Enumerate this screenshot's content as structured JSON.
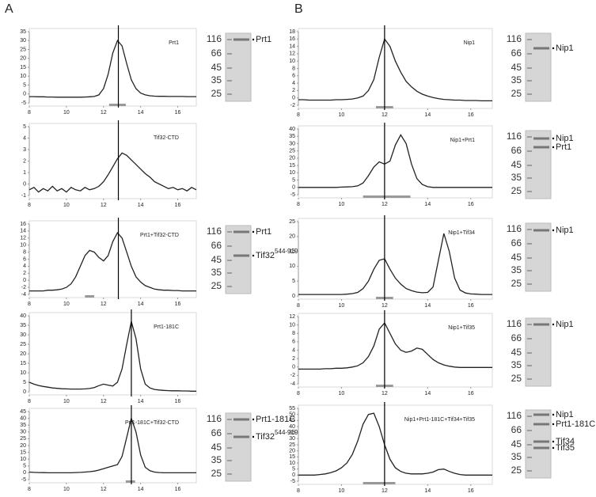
{
  "panel_labels": [
    "A",
    "B"
  ],
  "chart_data": [
    {
      "type": "line",
      "title": "Prt1",
      "x": [
        8,
        8.25,
        8.5,
        8.75,
        9,
        9.25,
        9.5,
        9.75,
        10,
        10.25,
        10.5,
        10.75,
        11,
        11.25,
        11.5,
        11.75,
        12,
        12.25,
        12.5,
        12.75,
        13,
        13.25,
        13.5,
        13.75,
        14,
        14.25,
        14.5,
        14.75,
        15,
        15.25,
        15.5,
        15.75,
        16,
        16.25,
        16.5,
        16.75,
        17
      ],
      "values": [
        -1.5,
        -1.5,
        -1.6,
        -1.6,
        -1.7,
        -1.7,
        -1.8,
        -1.8,
        -1.8,
        -1.8,
        -1.8,
        -1.8,
        -1.7,
        -1.6,
        -1.4,
        -0.5,
        3,
        11,
        23,
        30,
        27,
        17,
        8,
        3,
        0.5,
        -0.5,
        -1,
        -1.2,
        -1.3,
        -1.3,
        -1.4,
        -1.4,
        -1.4,
        -1.4,
        -1.5,
        -1.5,
        -1.5
      ],
      "xlim": [
        8,
        17
      ],
      "xticks": [
        8,
        10,
        12,
        14,
        16
      ],
      "ylim": [
        -5,
        35
      ],
      "yticks": [
        -5,
        0,
        5,
        10,
        15,
        20,
        25,
        30,
        35
      ],
      "color": "#222222",
      "vline": 12.8,
      "fraction_bar": [
        12.3,
        13.2
      ],
      "gel": {
        "markers": [
          116,
          66,
          45,
          35,
          25
        ],
        "bands": [
          {
            "text": "Prt1"
          }
        ]
      }
    },
    {
      "type": "line",
      "title": "Tif32-CTD",
      "x": [
        8,
        8.25,
        8.5,
        8.75,
        9,
        9.25,
        9.5,
        9.75,
        10,
        10.25,
        10.5,
        10.75,
        11,
        11.25,
        11.5,
        11.75,
        12,
        12.25,
        12.5,
        12.75,
        13,
        13.25,
        13.5,
        13.75,
        14,
        14.25,
        14.5,
        14.75,
        15,
        15.25,
        15.5,
        15.75,
        16,
        16.25,
        16.5,
        16.75,
        17
      ],
      "values": [
        -0.5,
        -0.3,
        -0.7,
        -0.4,
        -0.6,
        -0.2,
        -0.6,
        -0.4,
        -0.7,
        -0.3,
        -0.5,
        -0.6,
        -0.3,
        -0.5,
        -0.4,
        -0.2,
        0.2,
        0.8,
        1.5,
        2.2,
        2.7,
        2.5,
        2.1,
        1.7,
        1.3,
        0.9,
        0.6,
        0.2,
        0,
        -0.2,
        -0.4,
        -0.3,
        -0.5,
        -0.4,
        -0.6,
        -0.3,
        -0.5
      ],
      "xlim": [
        8,
        17
      ],
      "xticks": [
        8,
        10,
        12,
        14,
        16
      ],
      "ylim": [
        -1,
        5
      ],
      "yticks": [
        -1,
        0,
        1,
        2,
        3,
        4,
        5
      ],
      "color": "#222222",
      "vline": 12.8
    },
    {
      "type": "line",
      "title": "Prt1+Tif32-CTD",
      "x": [
        8,
        8.25,
        8.5,
        8.75,
        9,
        9.25,
        9.5,
        9.75,
        10,
        10.25,
        10.5,
        10.75,
        11,
        11.25,
        11.5,
        11.75,
        12,
        12.25,
        12.5,
        12.75,
        13,
        13.25,
        13.5,
        13.75,
        14,
        14.25,
        14.5,
        14.75,
        15,
        15.25,
        15.5,
        15.75,
        16,
        16.25,
        16.5,
        16.75,
        17
      ],
      "values": [
        -3,
        -3,
        -3,
        -3,
        -2.8,
        -2.8,
        -2.7,
        -2.5,
        -2,
        -1,
        1,
        4,
        7,
        8.5,
        8,
        6.5,
        5.5,
        7,
        11,
        13.5,
        12,
        8,
        4,
        1,
        -0.5,
        -1.5,
        -2,
        -2.5,
        -2.7,
        -2.8,
        -2.8,
        -2.9,
        -2.9,
        -3,
        -3,
        -3,
        -3
      ],
      "xlim": [
        8,
        17
      ],
      "xticks": [
        8,
        10,
        12,
        14,
        16
      ],
      "ylim": [
        -4,
        16
      ],
      "yticks": [
        -4,
        -2,
        0,
        2,
        4,
        6,
        8,
        10,
        12,
        14,
        16
      ],
      "color": "#222222",
      "vline": 12.8,
      "fraction_bar": [
        11,
        11.5
      ],
      "gel": {
        "markers": [
          116,
          66,
          45,
          35,
          25
        ],
        "bands": [
          {
            "text": "Prt1"
          },
          {
            "text": "Tif32",
            "sup": "544-919"
          }
        ]
      }
    },
    {
      "type": "line",
      "title": "Prt1-181C",
      "x": [
        8,
        8.25,
        8.5,
        8.75,
        9,
        9.25,
        9.5,
        9.75,
        10,
        10.25,
        10.5,
        10.75,
        11,
        11.25,
        11.5,
        11.75,
        12,
        12.25,
        12.5,
        12.75,
        13,
        13.25,
        13.5,
        13.75,
        14,
        14.25,
        14.5,
        14.75,
        15,
        15.25,
        15.5,
        15.75,
        16,
        16.25,
        16.5,
        16.75,
        17
      ],
      "values": [
        5,
        4,
        3.3,
        2.8,
        2.4,
        2,
        1.8,
        1.6,
        1.5,
        1.4,
        1.4,
        1.4,
        1.5,
        1.7,
        2.2,
        3.2,
        4,
        3.5,
        3,
        5,
        12,
        25,
        37,
        28,
        12,
        4,
        2,
        1.2,
        0.9,
        0.7,
        0.6,
        0.5,
        0.5,
        0.4,
        0.4,
        0.3,
        0.3
      ],
      "xlim": [
        8,
        17
      ],
      "xticks": [
        8,
        10,
        12,
        14,
        16
      ],
      "ylim": [
        0,
        40
      ],
      "yticks": [
        0,
        5,
        10,
        15,
        20,
        25,
        30,
        35,
        40
      ],
      "color": "#222222",
      "vline": 13.5
    },
    {
      "type": "line",
      "title": "Prt1-181C+Tif32-CTD",
      "x": [
        8,
        8.25,
        8.5,
        8.75,
        9,
        9.25,
        9.5,
        9.75,
        10,
        10.25,
        10.5,
        10.75,
        11,
        11.25,
        11.5,
        11.75,
        12,
        12.25,
        12.5,
        12.75,
        13,
        13.25,
        13.5,
        13.75,
        14,
        14.25,
        14.5,
        14.75,
        15,
        15.25,
        15.5,
        15.75,
        16,
        16.25,
        16.5,
        16.75,
        17
      ],
      "values": [
        0.5,
        0.3,
        0.2,
        0.1,
        0,
        0,
        0,
        0,
        0,
        0,
        0.2,
        0.3,
        0.5,
        0.8,
        1.2,
        2,
        3,
        4,
        5,
        6,
        12,
        26,
        40,
        30,
        13,
        4,
        1.5,
        0.5,
        0.2,
        0,
        0,
        0,
        0,
        0,
        0,
        0,
        0
      ],
      "xlim": [
        8,
        17
      ],
      "xticks": [
        8,
        10,
        12,
        14,
        16
      ],
      "ylim": [
        -5,
        45
      ],
      "yticks": [
        -5,
        0,
        5,
        10,
        15,
        20,
        25,
        30,
        35,
        40,
        45
      ],
      "color": "#222222",
      "vline": 13.5,
      "fraction_bar": [
        13.2,
        13.7
      ],
      "gel": {
        "markers": [
          116,
          66,
          45,
          35,
          25
        ],
        "bands": [
          {
            "text": "Prt1-181C"
          },
          {
            "text": "Tif32",
            "sup": "544-919"
          }
        ]
      }
    },
    {
      "type": "line",
      "title": "Nip1",
      "x": [
        8,
        8.25,
        8.5,
        8.75,
        9,
        9.25,
        9.5,
        9.75,
        10,
        10.25,
        10.5,
        10.75,
        11,
        11.25,
        11.5,
        11.75,
        12,
        12.25,
        12.5,
        12.75,
        13,
        13.25,
        13.5,
        13.75,
        14,
        14.25,
        14.5,
        14.75,
        15,
        15.25,
        15.5,
        15.75,
        16,
        16.25,
        16.5,
        16.75,
        17
      ],
      "values": [
        -0.5,
        -0.5,
        -0.6,
        -0.6,
        -0.6,
        -0.6,
        -0.6,
        -0.5,
        -0.5,
        -0.4,
        -0.3,
        0,
        0.5,
        2,
        5,
        11,
        16,
        14,
        10,
        7,
        4.5,
        3,
        1.8,
        1,
        0.5,
        0.1,
        -0.2,
        -0.4,
        -0.5,
        -0.6,
        -0.6,
        -0.7,
        -0.7,
        -0.7,
        -0.8,
        -0.8,
        -0.8
      ],
      "xlim": [
        8,
        17
      ],
      "xticks": [
        8,
        10,
        12,
        14,
        16
      ],
      "ylim": [
        -2,
        18
      ],
      "yticks": [
        -2,
        0,
        2,
        4,
        6,
        8,
        10,
        12,
        14,
        16,
        18
      ],
      "color": "#222222",
      "vline": 12,
      "fraction_bar": [
        11.6,
        12.4
      ],
      "gel": {
        "markers": [
          116,
          66,
          45,
          35,
          25
        ],
        "bands": [
          {
            "text": "Nip1"
          }
        ]
      }
    },
    {
      "type": "line",
      "title": "Nip1+Prt1",
      "x": [
        8,
        8.25,
        8.5,
        8.75,
        9,
        9.25,
        9.5,
        9.75,
        10,
        10.25,
        10.5,
        10.75,
        11,
        11.25,
        11.5,
        11.75,
        12,
        12.25,
        12.5,
        12.75,
        13,
        13.25,
        13.5,
        13.75,
        14,
        14.25,
        14.5,
        14.75,
        15,
        15.25,
        15.5,
        15.75,
        16,
        16.25,
        16.5,
        16.75,
        17
      ],
      "values": [
        0,
        0,
        0,
        0,
        0,
        0,
        0,
        0,
        0.2,
        0.3,
        0.5,
        1,
        3,
        8,
        14,
        17.5,
        16,
        18,
        29,
        36,
        30,
        16,
        6,
        2,
        0.5,
        0,
        0,
        0,
        0,
        0,
        0,
        0,
        0,
        0,
        0,
        0,
        0
      ],
      "xlim": [
        8,
        17
      ],
      "xticks": [
        8,
        10,
        12,
        14,
        16
      ],
      "ylim": [
        -5,
        40
      ],
      "yticks": [
        -5,
        0,
        5,
        10,
        15,
        20,
        25,
        30,
        35,
        40
      ],
      "color": "#222222",
      "vline": 12,
      "fraction_bar": [
        11,
        13.2
      ],
      "gel": {
        "markers": [
          116,
          66,
          45,
          35,
          25
        ],
        "bands": [
          {
            "text": "Nip1"
          },
          {
            "text": "Prt1"
          }
        ]
      }
    },
    {
      "type": "line",
      "title": "Nip1+Tif34",
      "x": [
        8,
        8.25,
        8.5,
        8.75,
        9,
        9.25,
        9.5,
        9.75,
        10,
        10.25,
        10.5,
        10.75,
        11,
        11.25,
        11.5,
        11.75,
        12,
        12.25,
        12.5,
        12.75,
        13,
        13.25,
        13.5,
        13.75,
        14,
        14.25,
        14.5,
        14.75,
        15,
        15.25,
        15.5,
        15.75,
        16,
        16.25,
        16.5,
        16.75,
        17
      ],
      "values": [
        0.5,
        0.5,
        0.5,
        0.5,
        0.5,
        0.5,
        0.5,
        0.5,
        0.5,
        0.6,
        0.8,
        1.2,
        2.5,
        5,
        9,
        12,
        12.5,
        9,
        6,
        4,
        2.5,
        1.8,
        1.3,
        1.1,
        1.2,
        3,
        12,
        21,
        15,
        6,
        2,
        1,
        0.7,
        0.6,
        0.5,
        0.5,
        0.5
      ],
      "xlim": [
        8,
        17
      ],
      "xticks": [
        8,
        10,
        12,
        14,
        16
      ],
      "ylim": [
        0,
        25
      ],
      "yticks": [
        0,
        5,
        10,
        15,
        20,
        25
      ],
      "color": "#222222",
      "vline": 12,
      "fraction_bar": [
        11.6,
        12.4
      ],
      "gel": {
        "markers": [
          116,
          66,
          45,
          35,
          25
        ],
        "bands": [
          {
            "text": "Nip1"
          }
        ]
      }
    },
    {
      "type": "line",
      "title": "Nip1+Tif35",
      "x": [
        8,
        8.25,
        8.5,
        8.75,
        9,
        9.25,
        9.5,
        9.75,
        10,
        10.25,
        10.5,
        10.75,
        11,
        11.25,
        11.5,
        11.75,
        12,
        12.25,
        12.5,
        12.75,
        13,
        13.25,
        13.5,
        13.75,
        14,
        14.25,
        14.5,
        14.75,
        15,
        15.25,
        15.5,
        15.75,
        16,
        16.25,
        16.5,
        16.75,
        17
      ],
      "values": [
        -0.5,
        -0.5,
        -0.5,
        -0.5,
        -0.5,
        -0.4,
        -0.4,
        -0.3,
        -0.3,
        -0.2,
        0,
        0.3,
        1,
        2.5,
        5,
        9,
        10.5,
        8,
        5.5,
        4,
        3.5,
        3.8,
        4.5,
        4.2,
        3,
        1.8,
        1,
        0.5,
        0.2,
        0,
        -0.1,
        -0.1,
        -0.1,
        -0.1,
        -0.1,
        -0.1,
        -0.1
      ],
      "xlim": [
        8,
        17
      ],
      "xticks": [
        8,
        10,
        12,
        14,
        16
      ],
      "ylim": [
        -4,
        12
      ],
      "yticks": [
        -4,
        -2,
        0,
        2,
        4,
        6,
        8,
        10,
        12
      ],
      "color": "#222222",
      "vline": 12,
      "fraction_bar": [
        11.6,
        12.4
      ],
      "gel": {
        "markers": [
          116,
          66,
          45,
          35,
          25
        ],
        "bands": [
          {
            "text": "Nip1"
          }
        ]
      }
    },
    {
      "type": "line",
      "title": "Nip1+Prt1-181C+Tif34+Tif35",
      "x": [
        8,
        8.25,
        8.5,
        8.75,
        9,
        9.25,
        9.5,
        9.75,
        10,
        10.25,
        10.5,
        10.75,
        11,
        11.25,
        11.5,
        11.75,
        12,
        12.25,
        12.5,
        12.75,
        13,
        13.25,
        13.5,
        13.75,
        14,
        14.25,
        14.5,
        14.75,
        15,
        15.25,
        15.5,
        15.75,
        16,
        16.25,
        16.5,
        16.75,
        17
      ],
      "values": [
        0,
        0,
        0,
        0,
        0.5,
        1,
        2,
        3.5,
        6,
        10,
        17,
        28,
        42,
        50,
        51,
        40,
        25,
        13,
        6,
        3,
        1.5,
        1,
        1,
        1,
        1.5,
        2.5,
        4.5,
        5,
        3,
        1.5,
        0.5,
        0,
        0,
        0,
        0,
        0,
        0
      ],
      "xlim": [
        8,
        17
      ],
      "xticks": [
        8,
        10,
        12,
        14,
        16
      ],
      "ylim": [
        -5,
        55
      ],
      "yticks": [
        -5,
        0,
        5,
        10,
        15,
        20,
        25,
        30,
        35,
        40,
        45,
        50,
        55
      ],
      "color": "#222222",
      "vline": 12,
      "fraction_bar": [
        11,
        12.5
      ],
      "gel": {
        "markers": [
          116,
          66,
          45,
          35,
          25
        ],
        "bands": [
          {
            "text": "Nip1"
          },
          {
            "text": "Prt1-181C"
          },
          {
            "text": "Tif34"
          },
          {
            "text": "Tif35"
          }
        ]
      }
    }
  ]
}
